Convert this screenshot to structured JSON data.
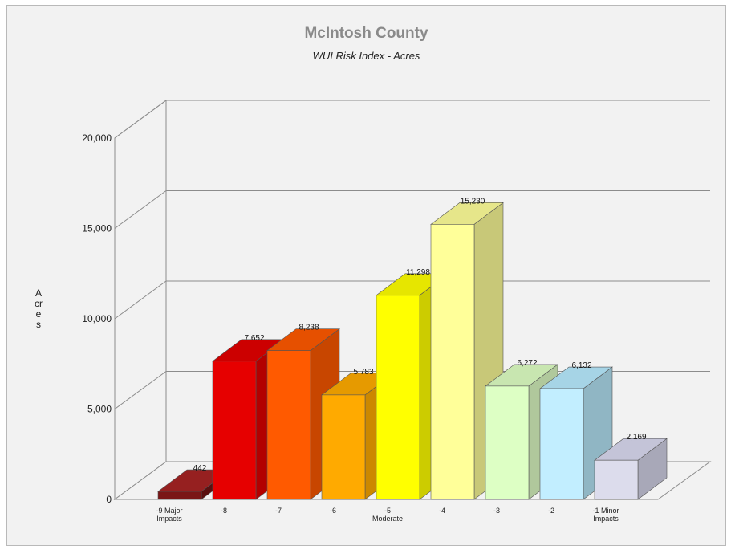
{
  "chart_data": {
    "type": "bar",
    "title": "McIntosh County",
    "subtitle": "WUI Risk Index - Acres",
    "ylabel": "Acres",
    "xlabel": "",
    "ylim": [
      0,
      20000
    ],
    "yticks": [
      "0",
      "5,000",
      "10,000",
      "15,000",
      "20,000"
    ],
    "grid": true,
    "legend": "none",
    "categories": [
      [
        "-9 Major",
        "Impacts"
      ],
      [
        "-8"
      ],
      [
        "-7"
      ],
      [
        "-6"
      ],
      [
        "-5",
        "Moderate"
      ],
      [
        "-4"
      ],
      [
        "-3"
      ],
      [
        "-2"
      ],
      [
        "-1 Minor",
        "Impacts"
      ]
    ],
    "values": [
      442,
      7652,
      8238,
      5783,
      11298,
      15230,
      6272,
      6132,
      2169
    ],
    "value_labels": [
      "442",
      "7,652",
      "8,238",
      "5,783",
      "11,298",
      "15,230",
      "6,272",
      "6,132",
      "2,169"
    ],
    "colors": [
      {
        "front": "#7a1616",
        "side": "#5a1010",
        "top": "#962020"
      },
      {
        "front": "#e60000",
        "side": "#b30000",
        "top": "#cc0000"
      },
      {
        "front": "#ff5a00",
        "side": "#c84600",
        "top": "#e65000"
      },
      {
        "front": "#ffaa00",
        "side": "#cc8800",
        "top": "#e69a00"
      },
      {
        "front": "#ffff00",
        "side": "#cccc00",
        "top": "#e6e600"
      },
      {
        "front": "#ffff99",
        "side": "#c8c878",
        "top": "#e6e68a"
      },
      {
        "front": "#ddffc4",
        "side": "#b0c89c",
        "top": "#c8e6b0"
      },
      {
        "front": "#c2eeff",
        "side": "#90b6c4",
        "top": "#a6d4e6"
      },
      {
        "front": "#dcdcec",
        "side": "#a8a8b8",
        "top": "#c4c4d8"
      }
    ]
  }
}
